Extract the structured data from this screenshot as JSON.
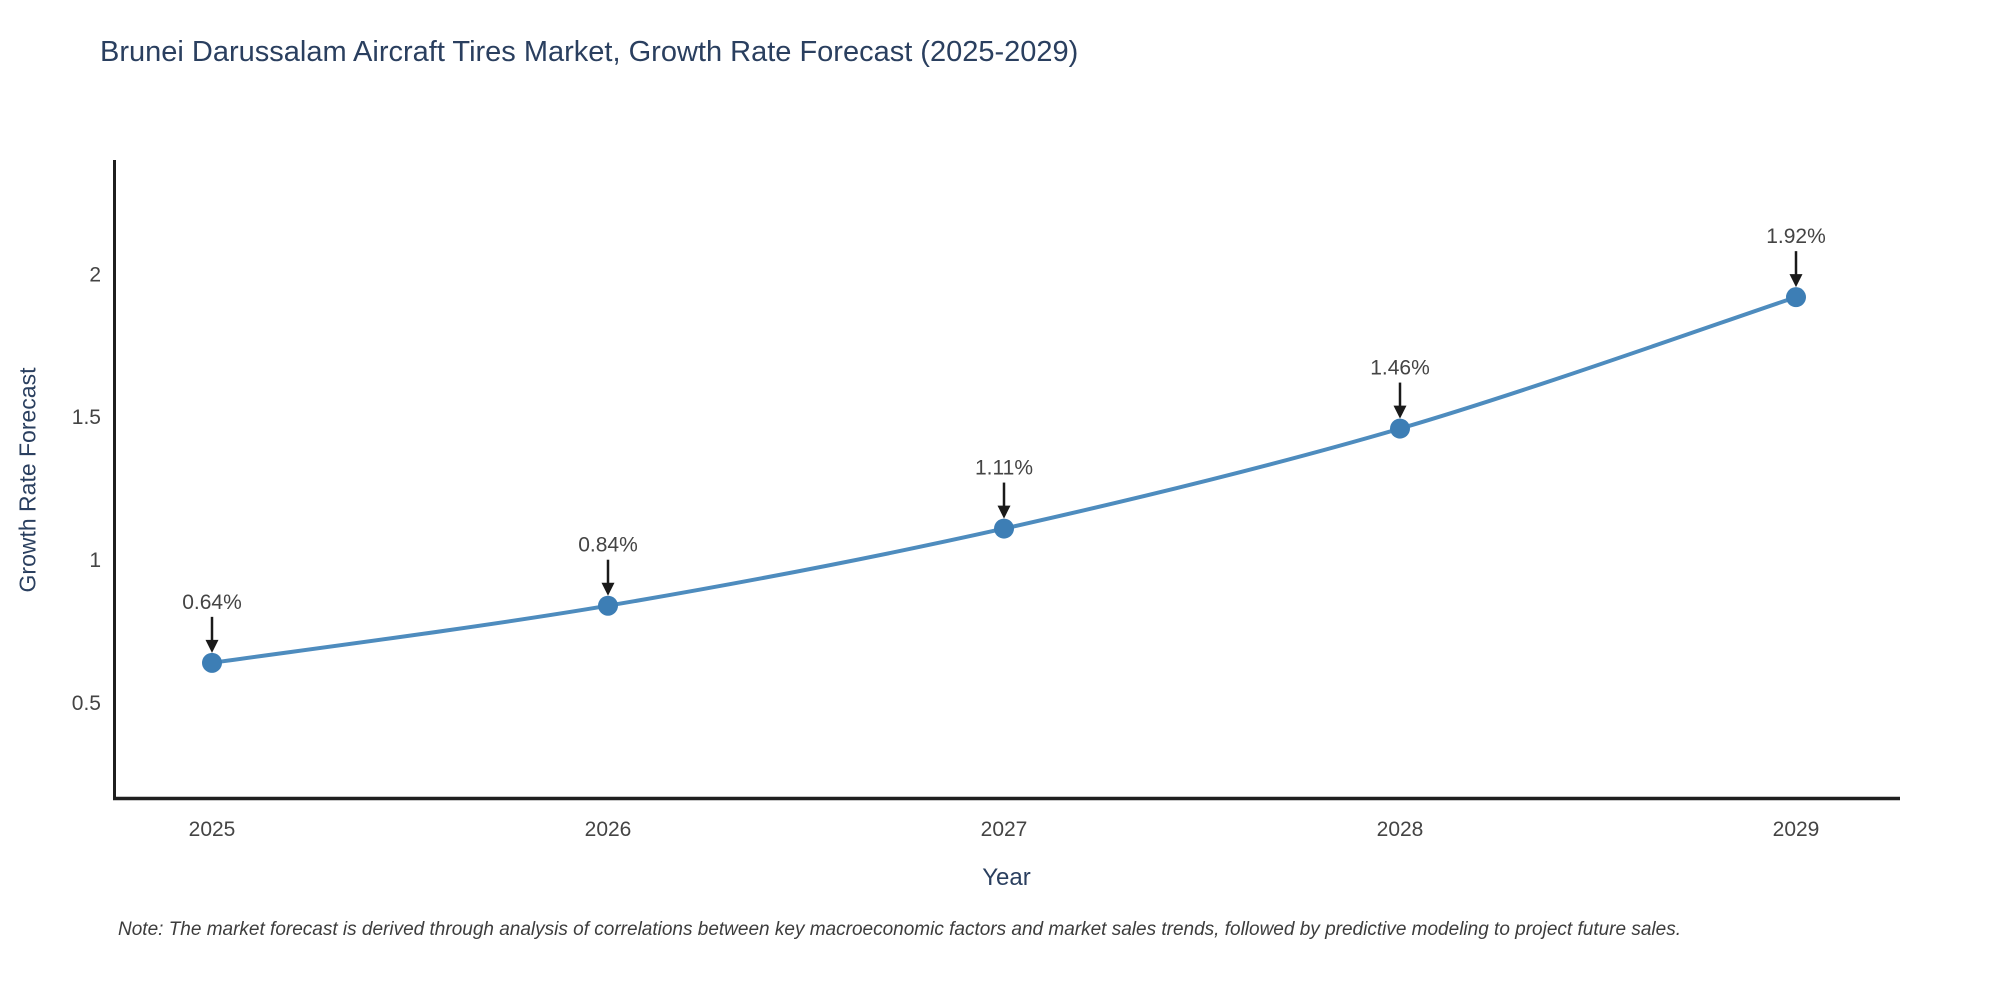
{
  "chart_data": {
    "type": "line",
    "title": "Brunei Darussalam Aircraft Tires Market, Growth Rate Forecast (2025-2029)",
    "xlabel": "Year",
    "ylabel": "Growth Rate Forecast",
    "categories": [
      "2025",
      "2026",
      "2027",
      "2028",
      "2029"
    ],
    "series": [
      {
        "name": "Growth Rate Forecast",
        "values": [
          0.64,
          0.84,
          1.11,
          1.46,
          1.92
        ]
      }
    ],
    "point_labels": [
      "0.64%",
      "0.84%",
      "1.11%",
      "1.46%",
      "1.92%"
    ],
    "ytick_labels": [
      "0.5",
      "1",
      "1.5",
      "2"
    ],
    "ytick_values": [
      0.5,
      1,
      1.5,
      2
    ],
    "ylim": [
      0.16,
      2.4
    ],
    "grid": false,
    "legend_position": "none",
    "line_shape": "spline",
    "note": "Note: The market forecast is derived through analysis of correlations between key macroeconomic factors and market sales trends, followed by predictive modeling to project future sales.",
    "colors": {
      "line": "#4e8cbe",
      "marker": "#3d7eb5",
      "arrow": "#1a1a1a",
      "axis_line": "#1f1f1f",
      "tick_text": "#444444",
      "annotation_text": "#444444",
      "title_text": "#2a3f5f",
      "note_text": "#3d3d3d",
      "background": "#ffffff"
    }
  }
}
